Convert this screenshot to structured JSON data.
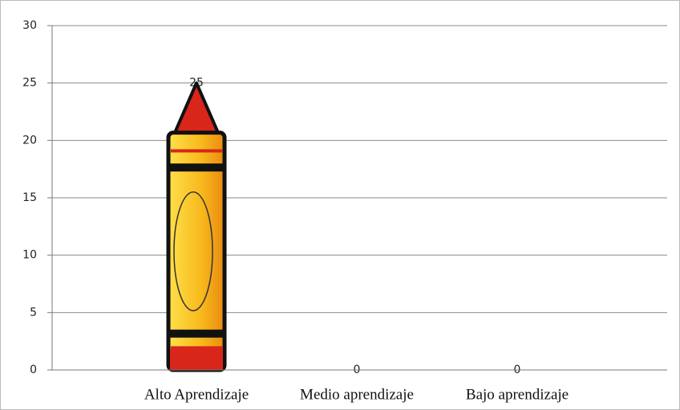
{
  "chart_data": {
    "type": "bar",
    "categories": [
      "Alto Aprendizaje",
      "Medio aprendizaje",
      "Bajo aprendizaje"
    ],
    "values": [
      25,
      0,
      0
    ],
    "color": "#f5b51e",
    "ylim": [
      0,
      30
    ],
    "yticks": [
      0,
      5,
      10,
      15,
      20,
      25,
      30
    ],
    "grid": true
  }
}
